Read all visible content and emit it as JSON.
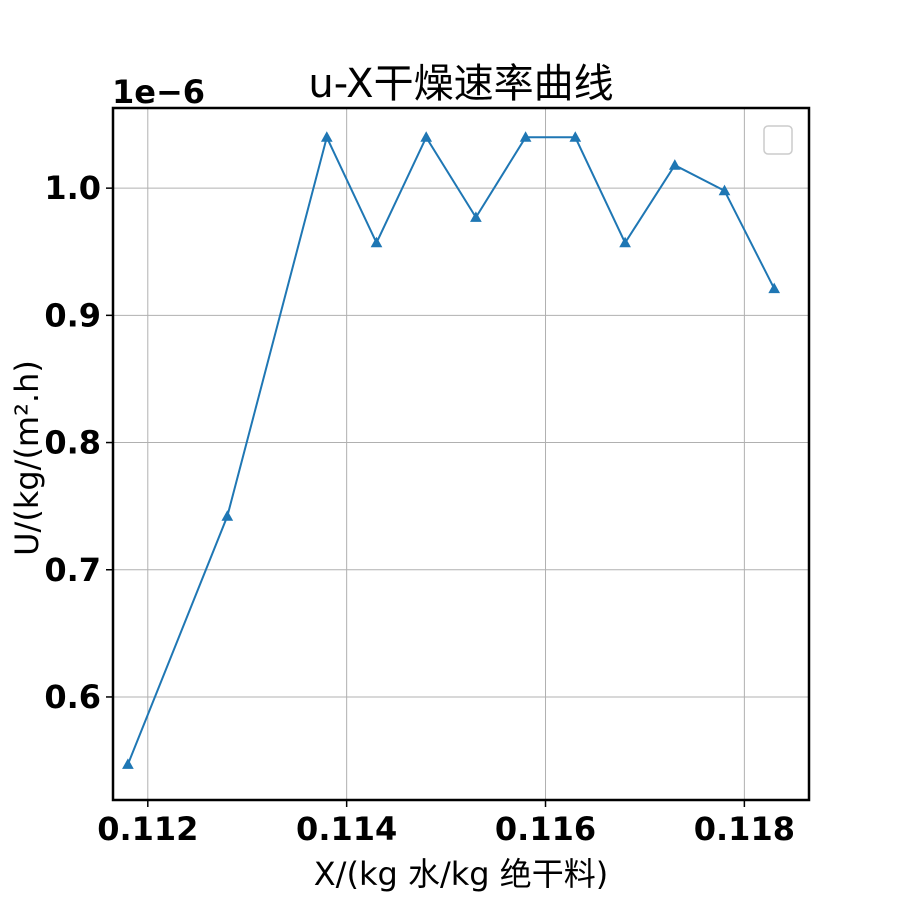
{
  "chart_data": {
    "type": "line",
    "title": "u-X干燥速率曲线",
    "xlabel": "X/(kg 水/kg 绝干料)",
    "ylabel": "U/(kg/(m².h)",
    "y_offset_text": "1e−6",
    "xlim": [
      0.11165,
      0.11865
    ],
    "ylim": [
      0.519,
      1.063
    ],
    "x_ticks": [
      0.112,
      0.114,
      0.116,
      0.118
    ],
    "x_tick_labels": [
      "0.112",
      "0.114",
      "0.116",
      "0.118"
    ],
    "y_ticks": [
      0.6,
      0.7,
      0.8,
      0.9,
      1.0
    ],
    "y_tick_labels": [
      "0.6",
      "0.7",
      "0.8",
      "0.9",
      "1.0"
    ],
    "grid": true,
    "legend": "top-right (empty)",
    "marker": "triangle-up",
    "colors": {
      "series": "#1f77b4"
    },
    "series": [
      {
        "x": [
          0.1118,
          0.1128,
          0.1138,
          0.1143,
          0.1148,
          0.1153,
          0.1158,
          0.1163,
          0.1168,
          0.1173,
          0.1178,
          0.1183
        ],
        "y": [
          0.547,
          0.742,
          1.04,
          0.957,
          1.04,
          0.977,
          1.04,
          1.04,
          0.957,
          1.018,
          0.998,
          0.921
        ]
      }
    ]
  }
}
